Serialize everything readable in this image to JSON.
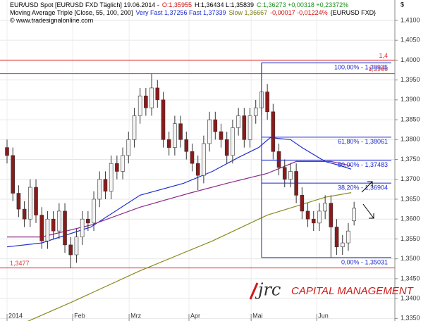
{
  "chart_data": {
    "type": "candlestick",
    "header": [
      [
        {
          "text": "EUR/USD Spot [EURUSD FXD  Täglich] 19.06.2014 -",
          "color": "#000000"
        },
        {
          "text": "O:1,35955",
          "color": "#d01010"
        },
        {
          "text": "H:1,36434 L:1,35839",
          "color": "#000000"
        },
        {
          "text": "C:1,36273 +0,00318 +0,23372%",
          "color": "#189018"
        }
      ],
      [
        {
          "text": "Moving Average Triple [Close, 55, 100, 200]",
          "color": "#000000"
        },
        {
          "text": "Very Fast 1,37256 Fast 1,37339",
          "color": "#1a2ad0"
        },
        {
          "text": "Slow 1,36667",
          "color": "#7a7a10"
        },
        {
          "text": "-0,00017 -0,01224%",
          "color": "#d01010"
        },
        {
          "text": "{EURUSD FXD}",
          "color": "#000000"
        }
      ],
      [
        {
          "text": "© www.tradesignalonline.com",
          "color": "#000000"
        }
      ]
    ],
    "currency": "$",
    "logo": {
      "mark": "jrc",
      "text": "CAPITAL MANAGEMENT"
    },
    "x": [
      0,
      2,
      4,
      6,
      8,
      10,
      12,
      14,
      16,
      18,
      20,
      22,
      24,
      26,
      28,
      30,
      32,
      34,
      36,
      38,
      40,
      42,
      44,
      46,
      48,
      50,
      52,
      54,
      56,
      58,
      60,
      62,
      64,
      66,
      68,
      70,
      72,
      74,
      76,
      78,
      80,
      82,
      84,
      86,
      88,
      90,
      92,
      94,
      96,
      98,
      100,
      102,
      104,
      106,
      108,
      110,
      112,
      114,
      116,
      118,
      120
    ],
    "open": [
      1.378,
      1.376,
      1.3665,
      1.3625,
      1.36,
      1.368,
      1.361,
      1.3545,
      1.36,
      1.357,
      1.362,
      1.3535,
      1.351,
      1.3555,
      1.36,
      1.359,
      1.365,
      1.37,
      1.367,
      1.374,
      1.372,
      1.376,
      1.38,
      1.386,
      1.391,
      1.388,
      1.393,
      1.39,
      1.38,
      1.378,
      1.384,
      1.38,
      1.377,
      1.374,
      1.371,
      1.379,
      1.385,
      1.382,
      1.38,
      1.376,
      1.383,
      1.386,
      1.38,
      1.386,
      1.388,
      1.392,
      1.387,
      1.377,
      1.373,
      1.37,
      1.372,
      1.366,
      1.362,
      1.36,
      1.359,
      1.362,
      1.364,
      1.358,
      1.353,
      1.354,
      1.35955
    ],
    "high": [
      1.38,
      1.378,
      1.3685,
      1.3645,
      1.37,
      1.37,
      1.363,
      1.362,
      1.362,
      1.364,
      1.364,
      1.3555,
      1.3575,
      1.362,
      1.362,
      1.367,
      1.372,
      1.372,
      1.376,
      1.376,
      1.378,
      1.382,
      1.388,
      1.393,
      1.393,
      1.3966,
      1.395,
      1.392,
      1.382,
      1.386,
      1.386,
      1.382,
      1.379,
      1.376,
      1.381,
      1.387,
      1.387,
      1.384,
      1.382,
      1.385,
      1.388,
      1.388,
      1.388,
      1.39,
      1.3993,
      1.394,
      1.389,
      1.379,
      1.375,
      1.374,
      1.374,
      1.368,
      1.364,
      1.362,
      1.364,
      1.366,
      1.366,
      1.36,
      1.356,
      1.359,
      1.36434
    ],
    "low": [
      1.374,
      1.3645,
      1.3605,
      1.358,
      1.358,
      1.359,
      1.3525,
      1.3525,
      1.355,
      1.355,
      1.3515,
      1.3477,
      1.349,
      1.3535,
      1.357,
      1.357,
      1.363,
      1.365,
      1.365,
      1.37,
      1.37,
      1.374,
      1.378,
      1.384,
      1.386,
      1.386,
      1.388,
      1.378,
      1.376,
      1.376,
      1.378,
      1.375,
      1.372,
      1.3673,
      1.369,
      1.377,
      1.38,
      1.378,
      1.374,
      1.374,
      1.381,
      1.378,
      1.378,
      1.384,
      1.386,
      1.385,
      1.375,
      1.371,
      1.368,
      1.368,
      1.364,
      1.36,
      1.358,
      1.357,
      1.357,
      1.36,
      1.3503,
      1.351,
      1.351,
      1.352,
      1.35839
    ],
    "close": [
      1.376,
      1.3665,
      1.3625,
      1.36,
      1.368,
      1.361,
      1.3545,
      1.36,
      1.357,
      1.362,
      1.3535,
      1.351,
      1.3555,
      1.36,
      1.359,
      1.365,
      1.37,
      1.367,
      1.374,
      1.372,
      1.376,
      1.38,
      1.386,
      1.391,
      1.388,
      1.393,
      1.39,
      1.38,
      1.378,
      1.384,
      1.38,
      1.377,
      1.374,
      1.371,
      1.379,
      1.385,
      1.382,
      1.38,
      1.376,
      1.383,
      1.386,
      1.38,
      1.386,
      1.388,
      1.392,
      1.387,
      1.377,
      1.373,
      1.37,
      1.372,
      1.366,
      1.362,
      1.36,
      1.359,
      1.362,
      1.364,
      1.358,
      1.353,
      1.354,
      1.357,
      1.36273
    ],
    "up_color": "#f4f4f4",
    "down_color": "#8b1a1a",
    "lines": [
      {
        "color": "#2030d0",
        "x": [
          0,
          12,
          29,
          46,
          61,
          71,
          80,
          87,
          91,
          98,
          102,
          110,
          115,
          119
        ],
        "values": [
          1.353,
          1.354,
          1.358,
          1.366,
          1.369,
          1.372,
          1.3755,
          1.378,
          1.3805,
          1.38,
          1.378,
          1.3745,
          1.3735,
          1.37256
        ]
      },
      {
        "color": "#8a2a8a",
        "x": [
          0,
          12,
          29,
          46,
          63,
          76,
          90,
          100,
          112,
          119
        ],
        "values": [
          1.3555,
          1.3555,
          1.3585,
          1.363,
          1.3665,
          1.369,
          1.3715,
          1.3745,
          1.3745,
          1.37339
        ]
      },
      {
        "color": "#8a8a20",
        "x": [
          0,
          22,
          46,
          71,
          90,
          110,
          119
        ],
        "values": [
          1.332,
          1.339,
          1.347,
          1.3545,
          1.361,
          1.3655,
          1.36667
        ]
      }
    ],
    "levels": [
      {
        "value": 1.4,
        "label": "1,4",
        "color": "#e03030",
        "side": "right"
      },
      {
        "value": 1.3966,
        "label": "1,3966",
        "color": "#e03030",
        "side": "right"
      },
      {
        "value": 1.3477,
        "label": "1,3477",
        "color": "#e03030",
        "side": "left"
      }
    ],
    "fib": {
      "anchor_x": 88,
      "color": "#1a2ad0",
      "levels": [
        {
          "value": 1.39935,
          "label": "100,00% - 1,39935"
        },
        {
          "value": 1.38061,
          "label": "61,80% - 1,38061"
        },
        {
          "value": 1.37483,
          "label": "50,00% - 1,37483"
        },
        {
          "value": 1.36904,
          "label": "38,20% - 1,36904"
        },
        {
          "value": 1.35031,
          "label": "0,00% - 1,35031"
        }
      ]
    },
    "xlim": [
      -2.44,
      134.1
    ],
    "ylim": [
      1.33435,
      1.41513
    ],
    "xticks": [
      {
        "value": 0,
        "label": "2014"
      },
      {
        "value": 22.7,
        "label": "Feb"
      },
      {
        "value": 42.2,
        "label": "Mrz"
      },
      {
        "value": 62.9,
        "label": "Apr"
      },
      {
        "value": 84.4,
        "label": "Mai"
      },
      {
        "value": 107.1,
        "label": "Jun"
      }
    ],
    "yticks": [
      {
        "value": 1.335,
        "label": "1,3350"
      },
      {
        "value": 1.34,
        "label": "1,3400"
      },
      {
        "value": 1.345,
        "label": "1,3450"
      },
      {
        "value": 1.35,
        "label": "1,3500"
      },
      {
        "value": 1.355,
        "label": "1,3550"
      },
      {
        "value": 1.36,
        "label": "1,3600"
      },
      {
        "value": 1.365,
        "label": "1,3650"
      },
      {
        "value": 1.37,
        "label": "1,3700"
      },
      {
        "value": 1.375,
        "label": "1,3750"
      },
      {
        "value": 1.38,
        "label": "1,3800"
      },
      {
        "value": 1.385,
        "label": "1,3850"
      },
      {
        "value": 1.39,
        "label": "1,3900"
      },
      {
        "value": 1.395,
        "label": "1,3950"
      },
      {
        "value": 1.4,
        "label": "1,4000"
      },
      {
        "value": 1.405,
        "label": "1,4050"
      },
      {
        "value": 1.41,
        "label": "1,4100"
      }
    ],
    "grid": true
  }
}
